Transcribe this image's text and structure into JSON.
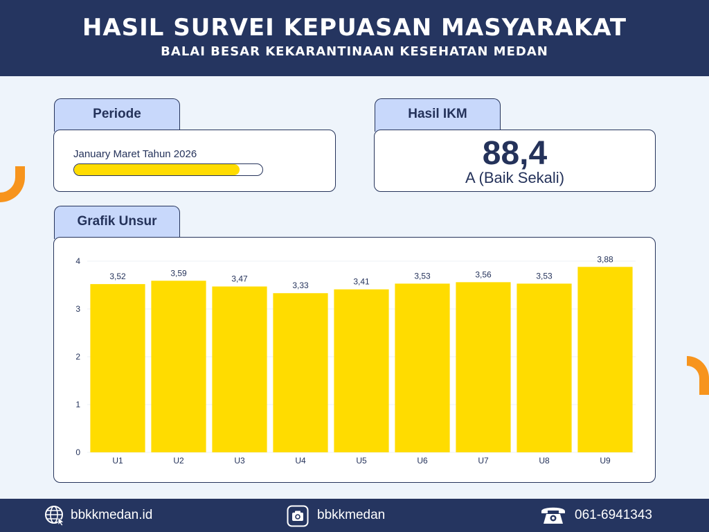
{
  "header": {
    "title": "HASIL SURVEI KEPUASAN MASYARAKAT",
    "subtitle": "BALAI BESAR KEKARANTINAAN KESEHATAN MEDAN"
  },
  "periode": {
    "label": "Periode",
    "text": "January Maret Tahun 2026",
    "progress": 0.88
  },
  "ikm": {
    "label": "Hasil IKM",
    "value": "88,4",
    "grade": "A (Baik Sekali)"
  },
  "grafik": {
    "label": "Grafik Unsur"
  },
  "chart_data": {
    "type": "bar",
    "categories": [
      "U1",
      "U2",
      "U3",
      "U4",
      "U5",
      "U6",
      "U7",
      "U8",
      "U9"
    ],
    "values": [
      3.52,
      3.59,
      3.47,
      3.33,
      3.41,
      3.53,
      3.56,
      3.53,
      3.88
    ],
    "value_labels": [
      "3,52",
      "3,59",
      "3,47",
      "3,33",
      "3,41",
      "3,53",
      "3,56",
      "3,53",
      "3,88"
    ],
    "yticks": [
      0,
      1,
      2,
      3,
      4
    ],
    "ylim": [
      0,
      4
    ],
    "bar_color": "#ffdc00",
    "grid": true
  },
  "footer": {
    "website": "bbkkmedan.id",
    "instagram": "bbkkmedan",
    "phone": "061-6941343"
  },
  "colors": {
    "navy": "#253560",
    "accent_yellow": "#ffdc00",
    "accent_orange": "#f7941d",
    "tab_blue": "#c8d8fb"
  }
}
